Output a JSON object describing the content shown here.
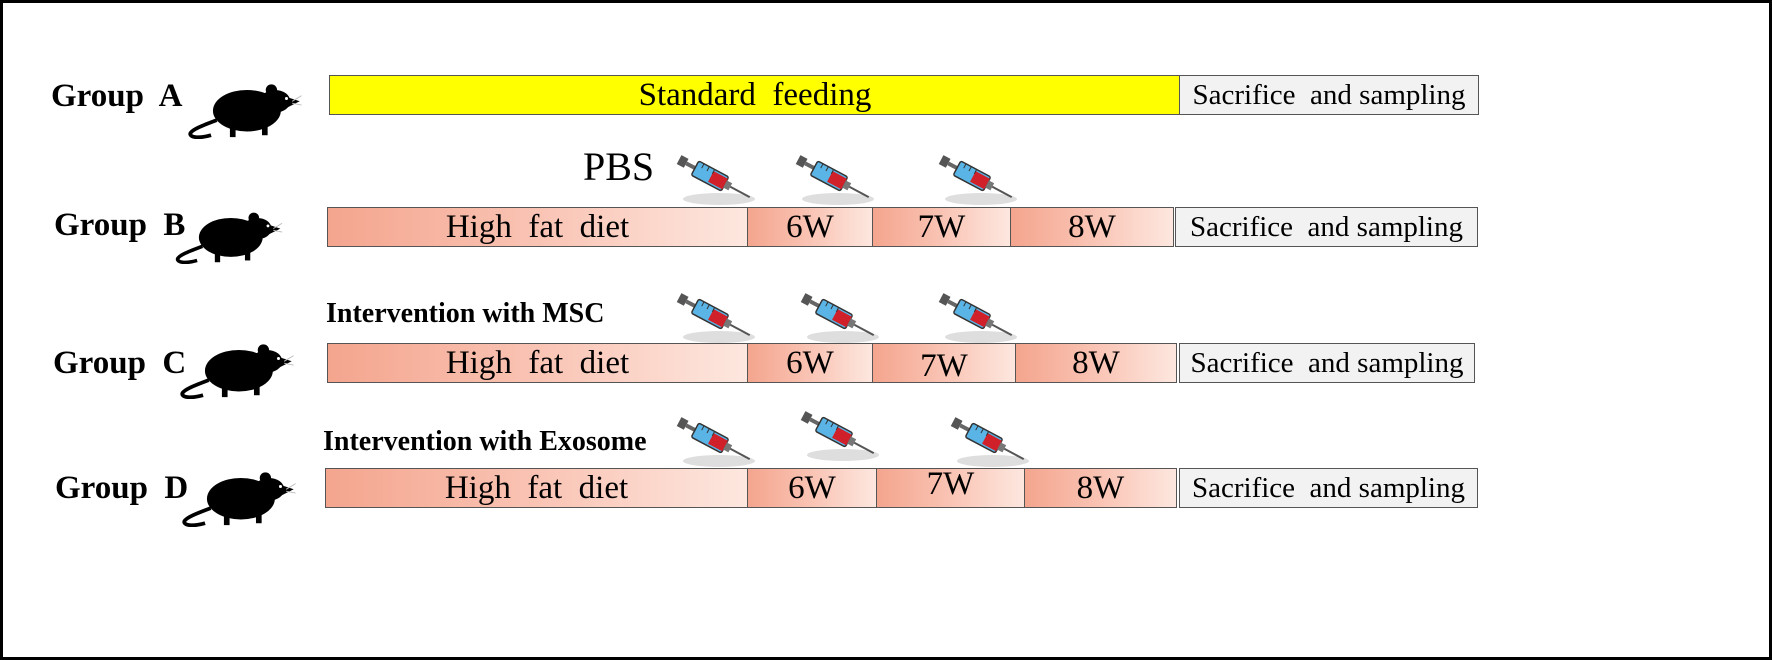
{
  "colors": {
    "standard_bar": "#ffff00",
    "hfd_start": "#f4a58e",
    "hfd_end": "#fde7df",
    "end_box": "#f2f2f2",
    "syringe_barrel": "#5ab4e6",
    "syringe_liquid": "#d0202a",
    "mouse": "#000000"
  },
  "icons": {
    "mouse": "mouse-icon",
    "syringe": "syringe-icon"
  },
  "groups": [
    {
      "label": "Group  A",
      "annotation": "",
      "segments": [
        "Standard  feeding"
      ],
      "end": "Sacrifice  and sampling"
    },
    {
      "label": "Group  B",
      "annotation": "PBS",
      "segments": [
        "High  fat  diet",
        "6W",
        "7W",
        "8W"
      ],
      "end": "Sacrifice  and sampling"
    },
    {
      "label": "Group  C",
      "annotation": "Intervention with MSC",
      "segments": [
        "High  fat  diet",
        "6W",
        "7W",
        "8W"
      ],
      "end": "Sacrifice  and sampling"
    },
    {
      "label": "Group  D",
      "annotation": "Intervention with Exosome",
      "segments": [
        "High  fat  diet",
        "6W",
        "7W",
        "8W"
      ],
      "end": "Sacrifice  and sampling"
    }
  ]
}
